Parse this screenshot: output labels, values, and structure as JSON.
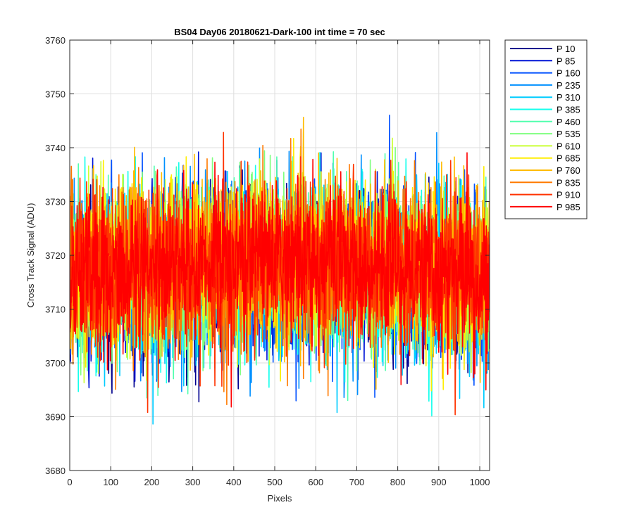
{
  "chart_data": {
    "type": "line",
    "title": "BS04 Day06 20180621-Dark-100 int time = 70 sec",
    "xlabel": "Pixels",
    "ylabel": "Cross Track Signal (ADU)",
    "xlim": [
      0,
      1024
    ],
    "ylim": [
      3680,
      3760
    ],
    "xticks": [
      0,
      100,
      200,
      300,
      400,
      500,
      600,
      700,
      800,
      900,
      1000
    ],
    "yticks": [
      3680,
      3690,
      3700,
      3710,
      3720,
      3730,
      3740,
      3750,
      3760
    ],
    "grid": true,
    "legend_position": "outside-top-right",
    "n_points": 1024,
    "series": [
      {
        "name": "P 10",
        "color": "#00008f",
        "mean": 3715.5,
        "spread": 7.5
      },
      {
        "name": "P 85",
        "color": "#0014d6",
        "mean": 3715.5,
        "spread": 7.5
      },
      {
        "name": "P 160",
        "color": "#0050ff",
        "mean": 3716.0,
        "spread": 7.5
      },
      {
        "name": "P 235",
        "color": "#0090ff",
        "mean": 3716.0,
        "spread": 7.5
      },
      {
        "name": "P 310",
        "color": "#00ccff",
        "mean": 3716.5,
        "spread": 7.5
      },
      {
        "name": "P 385",
        "color": "#14ffec",
        "mean": 3716.5,
        "spread": 7.5
      },
      {
        "name": "P 460",
        "color": "#50ffae",
        "mean": 3717.0,
        "spread": 7.5
      },
      {
        "name": "P 535",
        "color": "#7fff7f",
        "mean": 3717.0,
        "spread": 7.5
      },
      {
        "name": "P 610",
        "color": "#caff35",
        "mean": 3717.5,
        "spread": 7.5
      },
      {
        "name": "P 685",
        "color": "#ffee00",
        "mean": 3717.5,
        "spread": 7.5
      },
      {
        "name": "P 760",
        "color": "#ffbb00",
        "mean": 3717.5,
        "spread": 7.5
      },
      {
        "name": "P 835",
        "color": "#ff7a00",
        "mean": 3717.5,
        "spread": 7.5
      },
      {
        "name": "P 910",
        "color": "#ff3300",
        "mean": 3717.5,
        "spread": 7.5
      },
      {
        "name": "P 985",
        "color": "#ff0000",
        "mean": 3717.5,
        "spread": 7.0
      }
    ]
  }
}
